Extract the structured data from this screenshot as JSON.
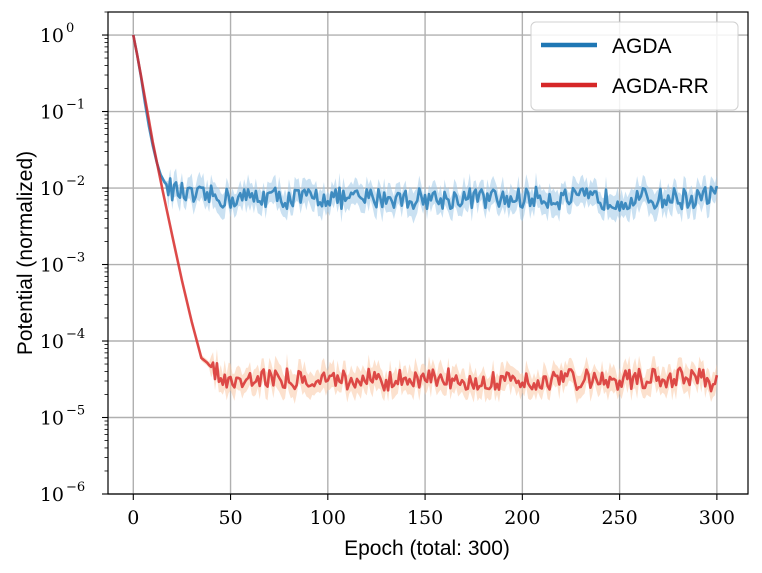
{
  "chart_data": {
    "type": "line",
    "xlabel": "Epoch (total: 300)",
    "ylabel": "Potential (normalized)",
    "xlim": [
      -13,
      316
    ],
    "ylim": [
      1e-06,
      2
    ],
    "yscale": "log",
    "grid": true,
    "legend_position": "top-right",
    "xticks": [
      0,
      50,
      100,
      150,
      200,
      250,
      300
    ],
    "yticks": [
      {
        "base": "10",
        "exp": "0",
        "value": 1
      },
      {
        "base": "10",
        "exp": "−1",
        "value": 0.1
      },
      {
        "base": "10",
        "exp": "−2",
        "value": 0.01
      },
      {
        "base": "10",
        "exp": "−3",
        "value": 0.001
      },
      {
        "base": "10",
        "exp": "−4",
        "value": 0.0001
      },
      {
        "base": "10",
        "exp": "−5",
        "value": 1e-05
      },
      {
        "base": "10",
        "exp": "−6",
        "value": 1e-06
      }
    ],
    "series": [
      {
        "name": "AGDA",
        "color": "#1f77b4",
        "band_color": "#9ec8e8",
        "x": [
          0,
          2,
          4,
          6,
          8,
          10,
          12,
          14,
          16,
          18,
          20,
          25,
          30,
          40,
          50,
          60,
          70,
          80,
          90,
          100,
          110,
          120,
          130,
          140,
          150,
          160,
          170,
          180,
          190,
          200,
          210,
          220,
          230,
          240,
          250,
          260,
          270,
          280,
          290,
          300
        ],
        "y": [
          1.0,
          0.55,
          0.28,
          0.13,
          0.065,
          0.036,
          0.022,
          0.015,
          0.012,
          0.0105,
          0.0095,
          0.0085,
          0.0075,
          0.0078,
          0.0072,
          0.0075,
          0.0078,
          0.0072,
          0.0074,
          0.0077,
          0.0071,
          0.0073,
          0.0076,
          0.0072,
          0.0074,
          0.0071,
          0.0075,
          0.0073,
          0.007,
          0.0074,
          0.0076,
          0.0072,
          0.0073,
          0.0071,
          0.007,
          0.0073,
          0.0072,
          0.0074,
          0.0071,
          0.0085
        ]
      },
      {
        "name": "AGDA-RR",
        "color": "#d62728",
        "band_color": "#f9c9a6",
        "x": [
          0,
          2,
          4,
          6,
          8,
          10,
          15,
          20,
          25,
          30,
          35,
          38,
          40,
          45,
          50,
          55,
          60,
          70,
          80,
          90,
          100,
          110,
          120,
          130,
          140,
          150,
          160,
          170,
          180,
          190,
          200,
          210,
          220,
          230,
          240,
          250,
          260,
          270,
          280,
          290,
          300
        ],
        "y": [
          1.0,
          0.55,
          0.29,
          0.15,
          0.078,
          0.04,
          0.0095,
          0.0024,
          0.00062,
          0.00018,
          6e-05,
          5.2e-05,
          4.5e-05,
          3.6e-05,
          3.3e-05,
          3e-05,
          3.3e-05,
          3.4e-05,
          3.2e-05,
          3.3e-05,
          3.2e-05,
          3.1e-05,
          3.3e-05,
          3e-05,
          3.1e-05,
          3e-05,
          3.3e-05,
          3.2e-05,
          3.1e-05,
          3.2e-05,
          3e-05,
          3.1e-05,
          3.2e-05,
          3.1e-05,
          3.2e-05,
          3.1e-05,
          3.2e-05,
          3.1e-05,
          3.3e-05,
          3.2e-05,
          2.8e-05
        ]
      }
    ]
  }
}
